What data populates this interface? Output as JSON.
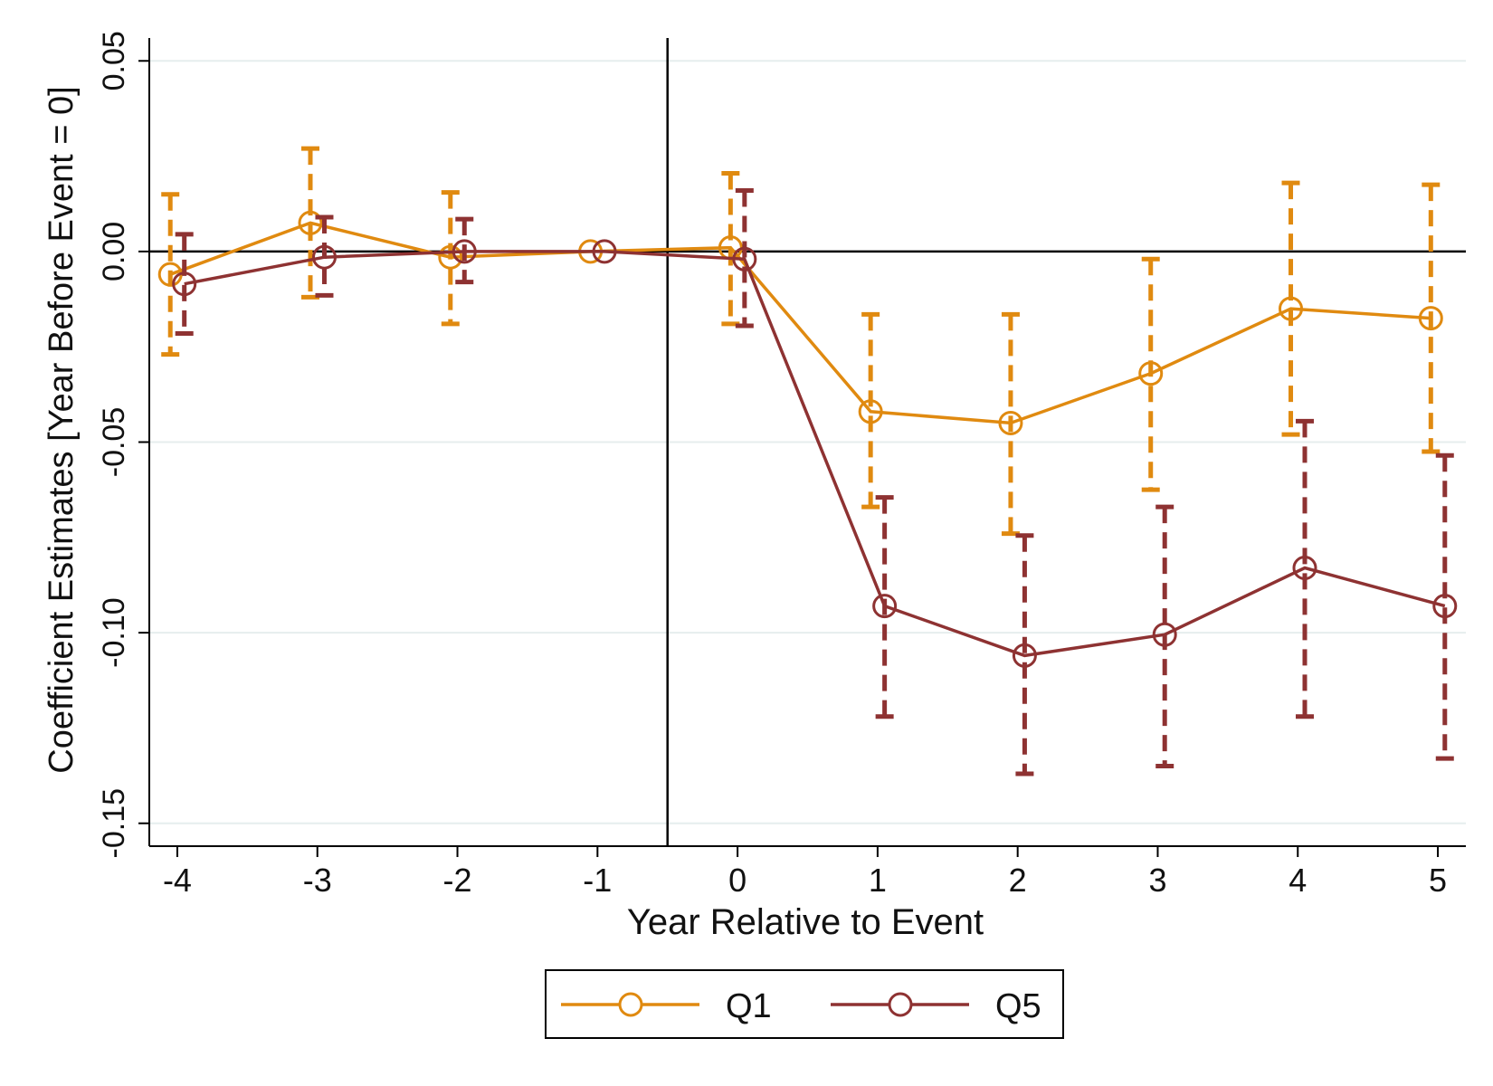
{
  "chart_data": {
    "type": "line",
    "xlabel": "Year Relative to Event",
    "ylabel": "Coefficient Estimates [Year Before Event = 0]",
    "xlim": [
      -4.2,
      5.2
    ],
    "ylim": [
      -0.156,
      0.056
    ],
    "xticks": [
      -4,
      -3,
      -2,
      -1,
      0,
      1,
      2,
      3,
      4,
      5
    ],
    "xtick_labels": [
      "-4",
      "-3",
      "-2",
      "-1",
      "0",
      "1",
      "2",
      "3",
      "4",
      "5"
    ],
    "yticks": [
      0.05,
      0.0,
      -0.05,
      -0.1,
      -0.15
    ],
    "ytick_labels": [
      "0.05",
      "0.00",
      "-0.05",
      "-0.10",
      "-0.15"
    ],
    "grid": true,
    "reference_lines": {
      "vertical_x": -0.5,
      "horizontal_y": 0.0
    },
    "legend_position": "bottom",
    "x": [
      -4,
      -3,
      -2,
      -1,
      0,
      1,
      2,
      3,
      4,
      5
    ],
    "series": [
      {
        "name": "Q1",
        "color": "#e08a10",
        "x_offset": -0.05,
        "values": [
          -0.006,
          0.0075,
          -0.0015,
          0.0,
          0.001,
          -0.042,
          -0.045,
          -0.032,
          -0.015,
          -0.0175
        ],
        "ci_lower": [
          -0.027,
          -0.012,
          -0.019,
          null,
          -0.019,
          -0.067,
          -0.074,
          -0.0625,
          -0.048,
          -0.0525
        ],
        "ci_upper": [
          0.015,
          0.027,
          0.0155,
          null,
          0.0205,
          -0.0165,
          -0.0165,
          -0.002,
          0.018,
          0.0175
        ]
      },
      {
        "name": "Q5",
        "color": "#8e3232",
        "x_offset": 0.05,
        "values": [
          -0.0085,
          -0.0015,
          0.0,
          0.0,
          -0.002,
          -0.093,
          -0.106,
          -0.1005,
          -0.083,
          -0.093
        ],
        "ci_lower": [
          -0.0215,
          -0.0115,
          -0.008,
          null,
          -0.0195,
          -0.122,
          -0.137,
          -0.135,
          -0.122,
          -0.133
        ],
        "ci_upper": [
          0.0045,
          0.009,
          0.0085,
          null,
          0.016,
          -0.0645,
          -0.0745,
          -0.067,
          -0.0445,
          -0.0535
        ]
      }
    ]
  }
}
